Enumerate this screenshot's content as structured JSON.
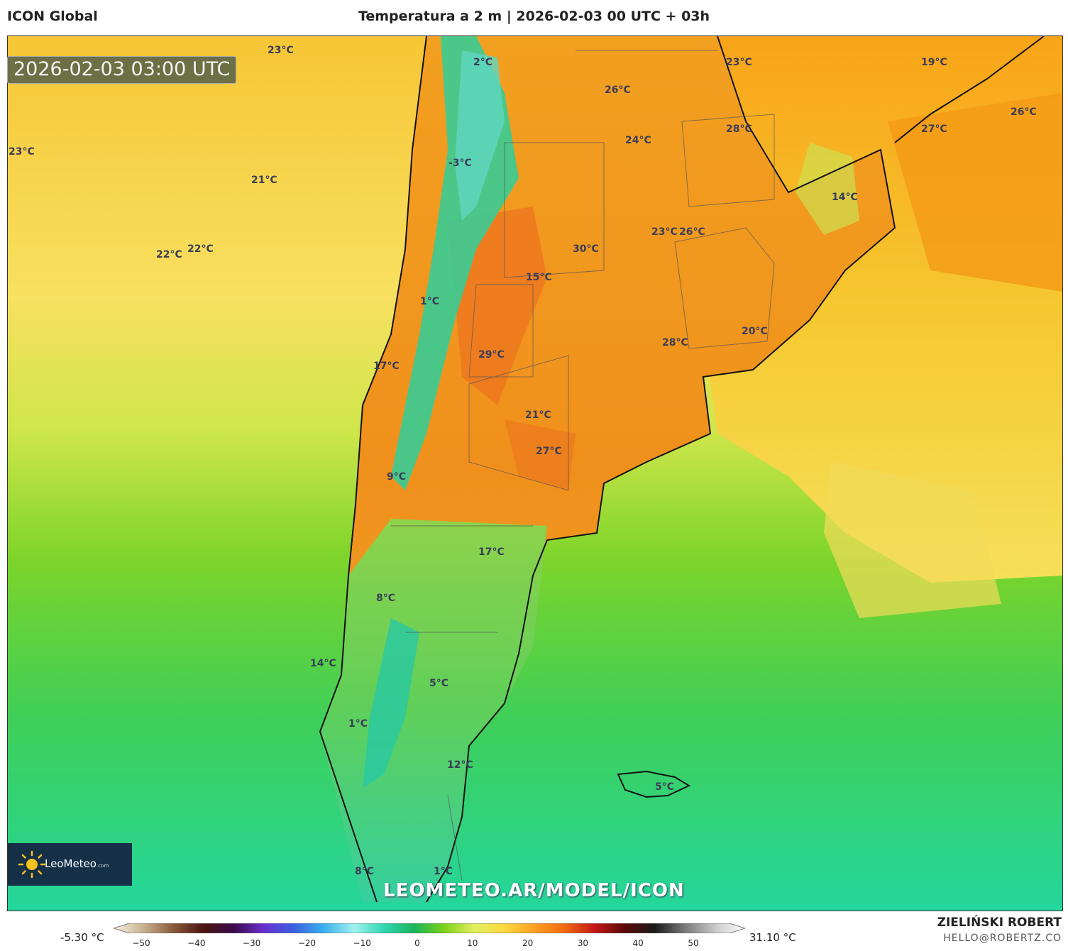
{
  "header": {
    "model": "ICON Global",
    "title": "Temperatura a 2 m | 2026-02-03 00 UTC + 03h"
  },
  "timestamp": "2026-02-03 03:00 UTC",
  "logo": {
    "brand": "LeoMeteo",
    "suffix": ".com"
  },
  "watermark": "LEOMETEO.AR/MODEL/ICON",
  "credits": {
    "author": "ZIELIŃSKI ROBERT",
    "email": "HELLO@ROBERTZ.CO"
  },
  "colorbar": {
    "min_label": "-5.30 °C",
    "max_label": "31.10 °C",
    "ticks": [
      "−50",
      "−40",
      "−30",
      "−20",
      "−10",
      "0",
      "10",
      "20",
      "30",
      "40",
      "50"
    ],
    "colors": [
      "#f7f1e4",
      "#c7b08f",
      "#8a5a3a",
      "#4a1410",
      "#3c0a4a",
      "#6a2fd0",
      "#3a62e0",
      "#3ab0f0",
      "#9ff2f0",
      "#30d6b0",
      "#18b45a",
      "#7ed21a",
      "#e0f060",
      "#ffd840",
      "#ffa020",
      "#f26a10",
      "#c41818",
      "#5a0808",
      "#1a1a1a",
      "#7a7a7a",
      "#c8c8c8",
      "#ffffff"
    ]
  },
  "map": {
    "colors": {
      "ocean_cool": "#2fd79a",
      "ocean_mid": "#62cc32",
      "ocean_warm": "#f2c830",
      "land_warm": "#f6a418",
      "land_hot": "#ee7e1a",
      "andes_cold": "#33d1b6"
    },
    "temperature_labels": [
      {
        "text": "23°C"
      },
      {
        "text": "2°C"
      },
      {
        "text": "26°C"
      },
      {
        "text": "23°C"
      },
      {
        "text": "19°C"
      },
      {
        "text": "23°C"
      },
      {
        "text": "-3°C"
      },
      {
        "text": "24°C"
      },
      {
        "text": "28°C"
      },
      {
        "text": "26°C"
      },
      {
        "text": "27°C"
      },
      {
        "text": "21°C"
      },
      {
        "text": "14°C"
      },
      {
        "text": "22°C"
      },
      {
        "text": "22°C"
      },
      {
        "text": "23°C"
      },
      {
        "text": "26°C"
      },
      {
        "text": "30°C"
      },
      {
        "text": "15°C"
      },
      {
        "text": "1°C"
      },
      {
        "text": "20°C"
      },
      {
        "text": "28°C"
      },
      {
        "text": "29°C"
      },
      {
        "text": "17°C"
      },
      {
        "text": "21°C"
      },
      {
        "text": "27°C"
      },
      {
        "text": "9°C"
      },
      {
        "text": "17°C"
      },
      {
        "text": "8°C"
      },
      {
        "text": "14°C"
      },
      {
        "text": "5°C"
      },
      {
        "text": "1°C"
      },
      {
        "text": "12°C"
      },
      {
        "text": "5°C"
      },
      {
        "text": "8°C"
      },
      {
        "text": "1°C"
      }
    ]
  }
}
